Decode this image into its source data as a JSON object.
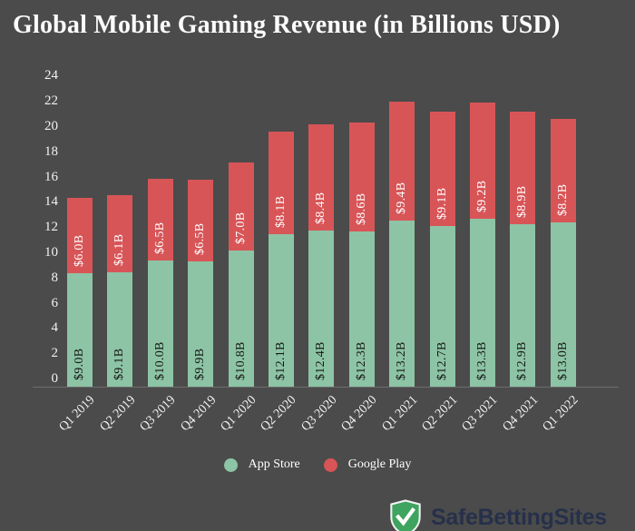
{
  "title": "Global Mobile Gaming Revenue (in Billions USD)",
  "colors": {
    "background": "#4B4B4B",
    "title_text": "#FCFCFC",
    "axis_text": "#F2F2F2",
    "axis_line": "#8A8A8A",
    "app_store": "#8DC4A5",
    "google_play": "#D85557",
    "label_on_app_store": "#161616",
    "label_on_google_play": "#FFFFFF",
    "logo_shield_green": "#3EA45F",
    "logo_shield_border": "#F2F2F2",
    "logo_check": "#FFFFFF",
    "logo_text": "#26304A"
  },
  "chart_data": {
    "type": "bar",
    "stacked": true,
    "title": "Global Mobile Gaming Revenue (in Billions USD)",
    "xlabel": "",
    "ylabel": "",
    "ylim": [
      0,
      24
    ],
    "ytick_step": 2,
    "yticks": [
      "0",
      "2",
      "4",
      "6",
      "8",
      "10",
      "12",
      "14",
      "16",
      "18",
      "20",
      "22",
      "24"
    ],
    "grid": false,
    "legend_position": "bottom",
    "categories": [
      "Q1 2019",
      "Q2 2019",
      "Q3 2019",
      "Q4 2019",
      "Q1 2020",
      "Q2 2020",
      "Q3 2020",
      "Q4 2020",
      "Q1 2021",
      "Q2 2021",
      "Q3 2021",
      "Q4 2021",
      "Q1 2022"
    ],
    "series": [
      {
        "name": "App Store",
        "color": "#8DC4A5",
        "values": [
          9.0,
          9.1,
          10.0,
          9.9,
          10.8,
          12.1,
          12.4,
          12.3,
          13.2,
          12.7,
          13.3,
          12.9,
          13.0
        ],
        "labels": [
          "$9.0B",
          "$9.1B",
          "$10.0B",
          "$9.9B",
          "$10.8B",
          "$12.1B",
          "$12.4B",
          "$12.3B",
          "$13.2B",
          "$12.7B",
          "$13.3B",
          "$12.9B",
          "$13.0B"
        ]
      },
      {
        "name": "Google Play",
        "color": "#D85557",
        "values": [
          6.0,
          6.1,
          6.5,
          6.5,
          7.0,
          8.1,
          8.4,
          8.6,
          9.4,
          9.1,
          9.2,
          8.9,
          8.2
        ],
        "labels": [
          "$6.0B",
          "$6.1B",
          "$6.5B",
          "$6.5B",
          "$7.0B",
          "$8.1B",
          "$8.4B",
          "$8.6B",
          "$9.4B",
          "$9.1B",
          "$9.2B",
          "$8.9B",
          "$8.2B"
        ]
      }
    ]
  },
  "legend": {
    "items": [
      {
        "label": "App Store",
        "color": "#8DC4A5"
      },
      {
        "label": "Google Play",
        "color": "#D85557"
      }
    ]
  },
  "footer": {
    "brand": "SafeBettingSites",
    "logo_icon": "shield-check-icon"
  }
}
